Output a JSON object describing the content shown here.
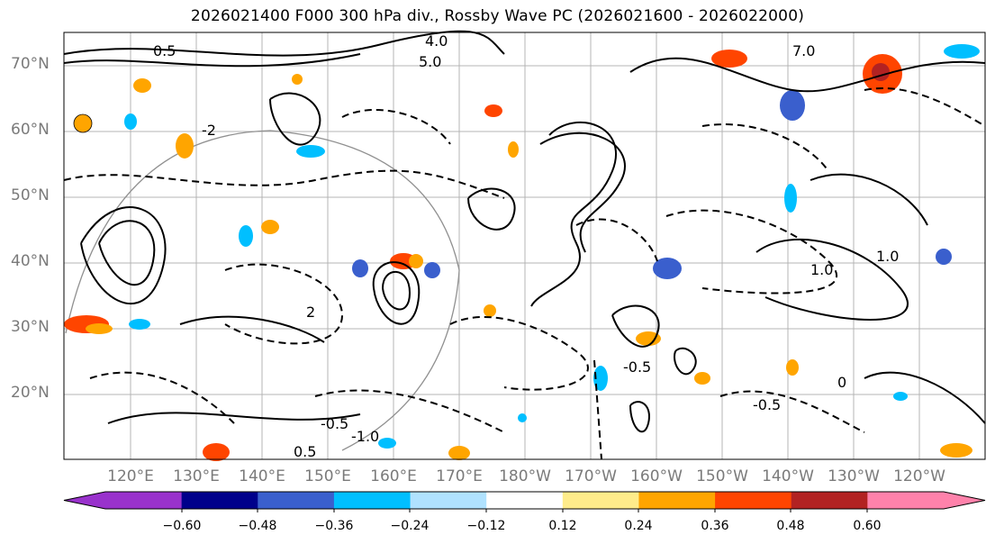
{
  "title": "2026021400 F000 300 hPa div., Rossby Wave PC (2026021600 - 2026022000)",
  "lat_labels": [
    "70°N",
    "60°N",
    "50°N",
    "40°N",
    "30°N",
    "20°N"
  ],
  "lon_labels": [
    "120°E",
    "130°E",
    "140°E",
    "150°E",
    "160°E",
    "170°E",
    "180°W",
    "170°W",
    "160°W",
    "150°W",
    "140°W",
    "130°W",
    "120°W"
  ],
  "colorbar": {
    "colors": [
      "#9932cc",
      "#00008b",
      "#3a5fcd",
      "#00bfff",
      "#b0e2ff",
      "#ffffff",
      "#ffec8b",
      "#ffa500",
      "#ff4500",
      "#b22222",
      "#ff82ab"
    ],
    "ticks": [
      "−0.60",
      "−0.48",
      "−0.36",
      "−0.24",
      "−0.12",
      "0.12",
      "0.24",
      "0.36",
      "0.48",
      "0.60"
    ]
  },
  "contour_labels": [
    "4.0",
    "5.0",
    "7.0",
    "0.5",
    "-0.5",
    "-1.0",
    "1.0",
    "-2",
    "2",
    "0",
    "0.5",
    "-0.5",
    "1.0",
    "-0.5"
  ],
  "colors": {
    "label_gray": "#7a7a7a",
    "grid": "#b4b4b4"
  }
}
